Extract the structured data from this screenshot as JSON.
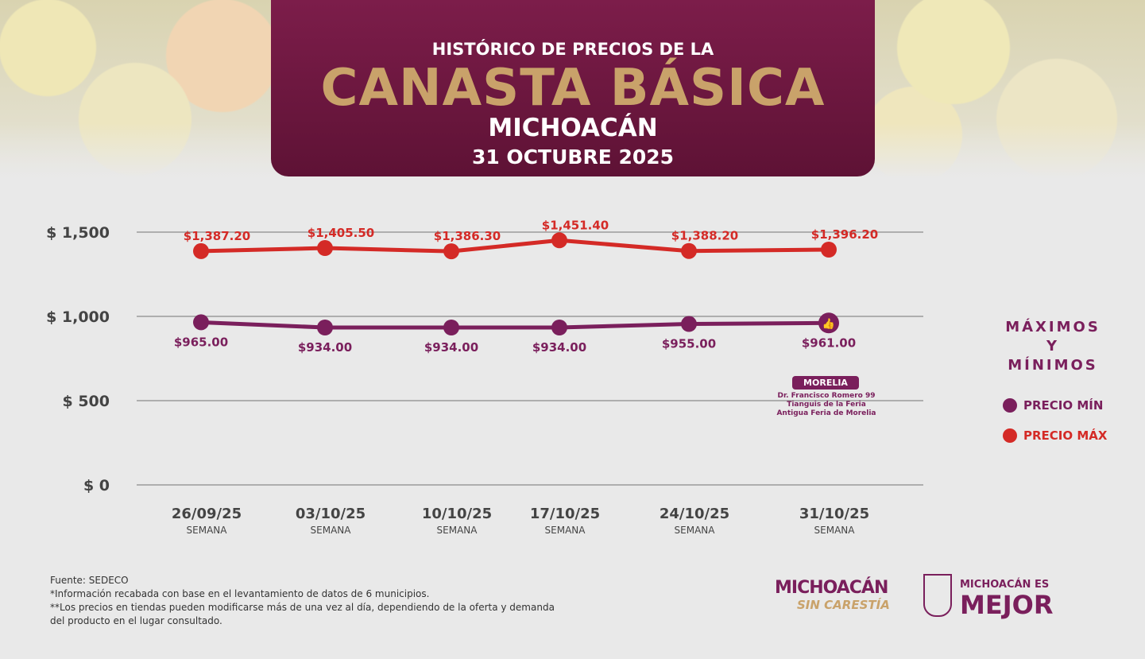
{
  "header": {
    "line1": "HISTÓRICO DE PRECIOS DE LA",
    "line2": "CANASTA BÁSICA",
    "line3": "MICHOACÁN",
    "line4": "31 OCTUBRE 2025"
  },
  "colors": {
    "min": "#7a1f5c",
    "max": "#d42a26",
    "gold": "#c9a26a"
  },
  "chart_data": {
    "type": "line",
    "categories": [
      "26/09/25",
      "03/10/25",
      "10/10/25",
      "17/10/25",
      "24/10/25",
      "31/10/25"
    ],
    "category_sublabel": "SEMANA",
    "y_ticks": [
      0,
      500,
      1000,
      1500
    ],
    "y_tick_labels": [
      "$ 0",
      "$ 500",
      "$ 1,000",
      "$ 1,500"
    ],
    "ylim": [
      0,
      1500
    ],
    "series": [
      {
        "name": "PRECIO MÍN",
        "values": [
          965.0,
          934.0,
          934.0,
          934.0,
          955.0,
          961.0
        ],
        "labels": [
          "$965.00",
          "$934.00",
          "$934.00",
          "$934.00",
          "$955.00",
          "$961.00"
        ]
      },
      {
        "name": "PRECIO MÁX",
        "values": [
          1387.2,
          1405.5,
          1386.3,
          1451.4,
          1388.2,
          1396.2
        ],
        "labels": [
          "$1,387.20",
          "$1,405.50",
          "$1,386.30",
          "$1,451.40",
          "$1,388.20",
          "$1,396.20"
        ]
      }
    ],
    "legend_title": [
      "MÁXIMOS",
      "Y",
      "MÍNIMOS"
    ],
    "legend_placement": "right",
    "annotation": {
      "badge": "MORELIA",
      "address": [
        "Dr. Francisco Romero 99",
        "Tianguis de la Feria",
        "Antigua Feria de Morelia"
      ]
    }
  },
  "notes": [
    "Fuente: SEDECO",
    "*Información recabada con base en el levantamiento de datos de 6 municipios.",
    "**Los precios en tiendas pueden modificarse más de una vez al día, dependiendo de la oferta y demanda",
    "del producto en el lugar consultado."
  ],
  "logos": {
    "l1a": "MICHOACÁN",
    "l1b": "SIN CARESTÍA",
    "l2a": "MICHOACÁN ES",
    "l2b": "MEJOR"
  }
}
